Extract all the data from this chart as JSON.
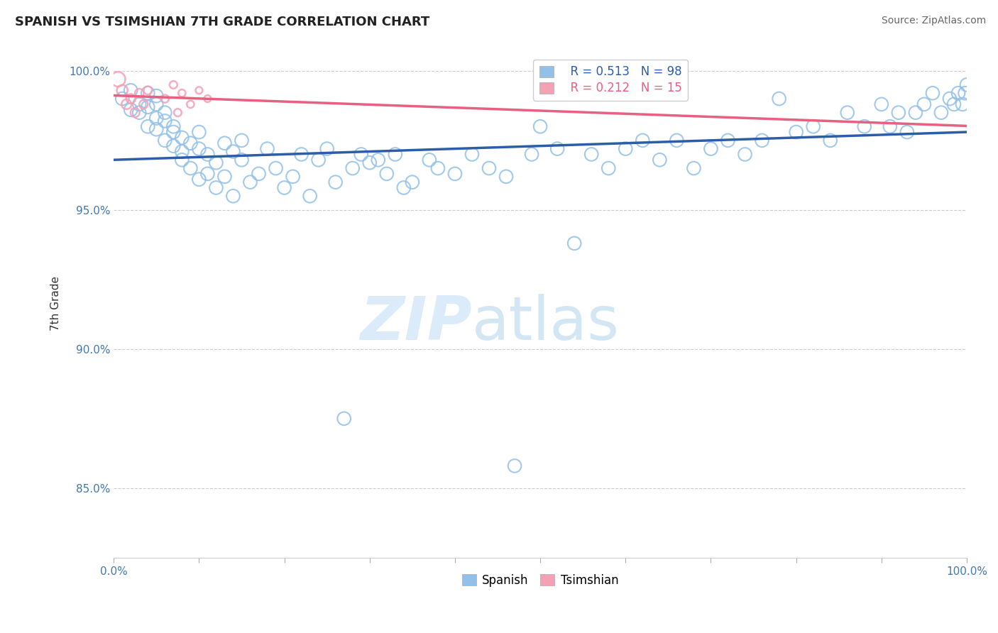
{
  "title": "SPANISH VS TSIMSHIAN 7TH GRADE CORRELATION CHART",
  "source": "Source: ZipAtlas.com",
  "ylabel": "7th Grade",
  "xlim": [
    0.0,
    1.0
  ],
  "ylim": [
    0.825,
    1.008
  ],
  "x_ticks": [
    0.0,
    0.1,
    0.2,
    0.3,
    0.4,
    0.5,
    0.6,
    0.7,
    0.8,
    0.9,
    1.0
  ],
  "x_tick_labels": [
    "0.0%",
    "",
    "",
    "",
    "",
    "",
    "",
    "",
    "",
    "",
    "100.0%"
  ],
  "y_ticks": [
    0.85,
    0.9,
    0.95,
    1.0
  ],
  "y_tick_labels": [
    "85.0%",
    "90.0%",
    "95.0%",
    "100.0%"
  ],
  "legend_R_spanish": "R = 0.513",
  "legend_N_spanish": "N = 98",
  "legend_R_tsimshian": "R = 0.212",
  "legend_N_tsimshian": "N = 15",
  "spanish_color": "#92C0E8",
  "tsimshian_color": "#F4A0B5",
  "spanish_line_color": "#2B5DA8",
  "tsimshian_line_color": "#E86080",
  "watermark_zip": "ZIP",
  "watermark_atlas": "atlas",
  "spanish_x": [
    0.01,
    0.02,
    0.02,
    0.03,
    0.03,
    0.04,
    0.04,
    0.04,
    0.05,
    0.05,
    0.05,
    0.05,
    0.06,
    0.06,
    0.06,
    0.07,
    0.07,
    0.07,
    0.08,
    0.08,
    0.08,
    0.09,
    0.09,
    0.1,
    0.1,
    0.1,
    0.11,
    0.11,
    0.12,
    0.12,
    0.13,
    0.13,
    0.14,
    0.14,
    0.15,
    0.15,
    0.16,
    0.17,
    0.18,
    0.19,
    0.2,
    0.21,
    0.22,
    0.23,
    0.24,
    0.25,
    0.26,
    0.27,
    0.28,
    0.29,
    0.3,
    0.31,
    0.32,
    0.33,
    0.34,
    0.35,
    0.37,
    0.38,
    0.4,
    0.42,
    0.44,
    0.46,
    0.47,
    0.49,
    0.5,
    0.52,
    0.54,
    0.56,
    0.58,
    0.6,
    0.62,
    0.64,
    0.66,
    0.68,
    0.7,
    0.72,
    0.74,
    0.76,
    0.78,
    0.8,
    0.82,
    0.84,
    0.86,
    0.88,
    0.9,
    0.91,
    0.92,
    0.93,
    0.94,
    0.95,
    0.96,
    0.97,
    0.98,
    0.985,
    0.99,
    0.995,
    0.998,
    1.0
  ],
  "spanish_y": [
    0.99,
    0.993,
    0.986,
    0.988,
    0.985,
    0.992,
    0.98,
    0.987,
    0.991,
    0.983,
    0.988,
    0.979,
    0.975,
    0.982,
    0.985,
    0.973,
    0.98,
    0.978,
    0.971,
    0.976,
    0.968,
    0.974,
    0.965,
    0.972,
    0.961,
    0.978,
    0.963,
    0.97,
    0.958,
    0.967,
    0.974,
    0.962,
    0.971,
    0.955,
    0.968,
    0.975,
    0.96,
    0.963,
    0.972,
    0.965,
    0.958,
    0.962,
    0.97,
    0.955,
    0.968,
    0.972,
    0.96,
    0.875,
    0.965,
    0.97,
    0.967,
    0.968,
    0.963,
    0.97,
    0.958,
    0.96,
    0.968,
    0.965,
    0.963,
    0.97,
    0.965,
    0.962,
    0.858,
    0.97,
    0.98,
    0.972,
    0.938,
    0.97,
    0.965,
    0.972,
    0.975,
    0.968,
    0.975,
    0.965,
    0.972,
    0.975,
    0.97,
    0.975,
    0.99,
    0.978,
    0.98,
    0.975,
    0.985,
    0.98,
    0.988,
    0.98,
    0.985,
    0.978,
    0.985,
    0.988,
    0.992,
    0.985,
    0.99,
    0.988,
    0.992,
    0.988,
    0.992,
    0.995
  ],
  "tsimshian_x": [
    0.005,
    0.01,
    0.015,
    0.02,
    0.025,
    0.03,
    0.035,
    0.04,
    0.06,
    0.07,
    0.075,
    0.08,
    0.09,
    0.1,
    0.11
  ],
  "tsimshian_y": [
    0.997,
    0.993,
    0.988,
    0.99,
    0.985,
    0.992,
    0.988,
    0.993,
    0.99,
    0.995,
    0.985,
    0.992,
    0.988,
    0.993,
    0.99
  ],
  "tsimshian_sizes": [
    220,
    120,
    100,
    90,
    85,
    80,
    75,
    70,
    65,
    60,
    60,
    55,
    55,
    50,
    50
  ]
}
